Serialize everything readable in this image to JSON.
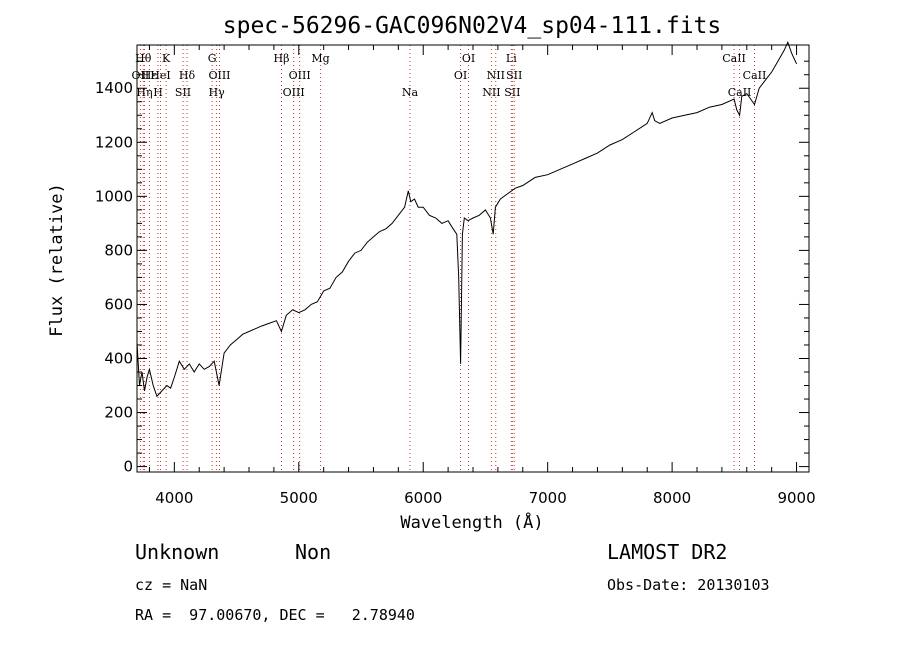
{
  "info": {
    "class": "Unknown",
    "subclass": "Non",
    "cz": "cz = NaN",
    "radec": "RA =  97.00670, DEC =   2.78940",
    "survey": "LAMOST DR2",
    "obsdate": "Obs-Date: 20130103"
  },
  "chart_data": {
    "type": "line",
    "title": "spec-56296-GAC096N02V4_sp04-111.fits",
    "xlabel": "Wavelength (Å)",
    "ylabel": "Flux (relative)",
    "xlim": [
      3700,
      9100
    ],
    "ylim": [
      -20,
      1560
    ],
    "xticks": [
      "4000",
      "5000",
      "6000",
      "7000",
      "8000",
      "9000"
    ],
    "yticks": [
      "0",
      "200",
      "400",
      "600",
      "800",
      "1000",
      "1200",
      "1400"
    ],
    "grid": false,
    "series": [
      {
        "color": "#000000",
        "x": [
          3700,
          3720,
          3740,
          3760,
          3780,
          3800,
          3830,
          3860,
          3900,
          3940,
          3970,
          4000,
          4040,
          4080,
          4120,
          4160,
          4200,
          4240,
          4280,
          4320,
          4360,
          4400,
          4450,
          4500,
          4550,
          4600,
          4650,
          4700,
          4760,
          4820,
          4860,
          4900,
          4950,
          5000,
          5050,
          5100,
          5150,
          5200,
          5250,
          5300,
          5350,
          5400,
          5450,
          5500,
          5550,
          5600,
          5650,
          5700,
          5750,
          5800,
          5850,
          5880,
          5900,
          5930,
          5960,
          6000,
          6050,
          6100,
          6150,
          6200,
          6240,
          6270,
          6285,
          6300,
          6315,
          6330,
          6360,
          6400,
          6450,
          6500,
          6540,
          6562,
          6580,
          6620,
          6680,
          6740,
          6800,
          6900,
          7000,
          7100,
          7200,
          7300,
          7400,
          7500,
          7600,
          7700,
          7800,
          7840,
          7860,
          7900,
          8000,
          8100,
          8200,
          8300,
          8400,
          8498,
          8520,
          8542,
          8560,
          8600,
          8662,
          8700,
          8750,
          8800,
          8850,
          8900,
          8930,
          8960,
          8990,
          9000
        ],
        "y": [
          460,
          300,
          350,
          280,
          330,
          360,
          300,
          260,
          280,
          300,
          290,
          330,
          390,
          360,
          380,
          350,
          380,
          360,
          370,
          390,
          300,
          420,
          450,
          470,
          490,
          500,
          510,
          520,
          530,
          540,
          500,
          560,
          580,
          570,
          580,
          600,
          610,
          650,
          660,
          700,
          720,
          760,
          790,
          800,
          830,
          850,
          870,
          880,
          900,
          930,
          960,
          1020,
          980,
          990,
          960,
          960,
          930,
          920,
          900,
          910,
          880,
          860,
          700,
          380,
          860,
          920,
          910,
          920,
          930,
          950,
          920,
          860,
          960,
          990,
          1010,
          1030,
          1040,
          1070,
          1080,
          1100,
          1120,
          1140,
          1160,
          1190,
          1210,
          1240,
          1270,
          1310,
          1280,
          1270,
          1290,
          1300,
          1310,
          1330,
          1340,
          1360,
          1320,
          1300,
          1370,
          1380,
          1340,
          1400,
          1430,
          1460,
          1500,
          1540,
          1570,
          1530,
          1500,
          1490
        ]
      }
    ],
    "lines": [
      {
        "x": 3750,
        "row": 0,
        "label": "Hθ"
      },
      {
        "x": 3727,
        "row": 1,
        "label": "OII"
      },
      {
        "x": 3760,
        "row": 2,
        "label": "Hη"
      },
      {
        "x": 3800,
        "row": 1,
        "label": "Hε"
      },
      {
        "x": 3869,
        "row": 2,
        "label": "H"
      },
      {
        "x": 3889,
        "row": 1,
        "label": "HeI"
      },
      {
        "x": 3934,
        "row": 0,
        "label": "K"
      },
      {
        "x": 4102,
        "row": 1,
        "label": "Hδ"
      },
      {
        "x": 4070,
        "row": 2,
        "label": "SII"
      },
      {
        "x": 4304,
        "row": 0,
        "label": "G"
      },
      {
        "x": 4340,
        "row": 2,
        "label": "Hγ"
      },
      {
        "x": 4363,
        "row": 1,
        "label": "OIII"
      },
      {
        "x": 4861,
        "row": 0,
        "label": "Hβ"
      },
      {
        "x": 4959,
        "row": 2,
        "label": "OIII"
      },
      {
        "x": 5007,
        "row": 1,
        "label": "OIII"
      },
      {
        "x": 5175,
        "row": 0,
        "label": "Mg"
      },
      {
        "x": 5893,
        "row": 2,
        "label": "Na"
      },
      {
        "x": 6300,
        "row": 1,
        "label": "OI"
      },
      {
        "x": 6364,
        "row": 0,
        "label": "OI"
      },
      {
        "x": 6548,
        "row": 2,
        "label": "NII"
      },
      {
        "x": 6583,
        "row": 1,
        "label": "NII"
      },
      {
        "x": 6708,
        "row": 0,
        "label": "Li"
      },
      {
        "x": 6716,
        "row": 2,
        "label": "SII"
      },
      {
        "x": 6731,
        "row": 1,
        "label": "SII"
      },
      {
        "x": 8498,
        "row": 0,
        "label": "CaII"
      },
      {
        "x": 8542,
        "row": 2,
        "label": "CaII"
      },
      {
        "x": 8662,
        "row": 1,
        "label": "CaII"
      }
    ]
  }
}
